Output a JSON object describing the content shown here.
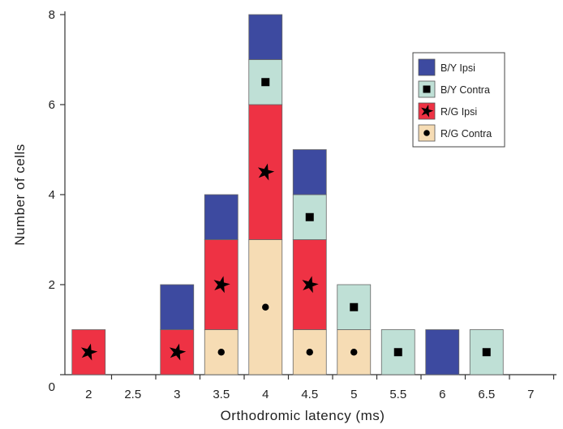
{
  "chart_data": {
    "type": "bar",
    "stacked": true,
    "categories": [
      "2",
      "2.5",
      "3",
      "3.5",
      "4",
      "4.5",
      "5",
      "5.5",
      "6",
      "6.5",
      "7"
    ],
    "xlabel": "Orthodromic latency (ms)",
    "ylabel": "Number of cells",
    "ylim": [
      0,
      8
    ],
    "yticks": [
      "0",
      "2",
      "4",
      "6",
      "8"
    ],
    "legend_position": "top-right",
    "series": [
      {
        "name": "R/G Contra",
        "color": "#f6dcb4",
        "marker": "circle",
        "values": [
          0,
          0,
          0,
          1,
          3,
          1,
          1,
          0,
          0,
          0,
          0
        ]
      },
      {
        "name": "R/G Ipsi",
        "color": "#ee3244",
        "marker": "star",
        "values": [
          1,
          0,
          1,
          2,
          3,
          2,
          0,
          0,
          0,
          0,
          0
        ]
      },
      {
        "name": "B/Y Contra",
        "color": "#bfe0d6",
        "marker": "square",
        "values": [
          0,
          0,
          0,
          0,
          1,
          1,
          1,
          1,
          0,
          1,
          0
        ]
      },
      {
        "name": "B/Y Ipsi",
        "color": "#3d4aa0",
        "marker": "none",
        "values": [
          0,
          0,
          1,
          1,
          1,
          1,
          0,
          0,
          1,
          0,
          0
        ]
      }
    ],
    "legend_order": [
      "B/Y Ipsi",
      "B/Y Contra",
      "R/G Ipsi",
      "R/G Contra"
    ],
    "grid": false
  }
}
